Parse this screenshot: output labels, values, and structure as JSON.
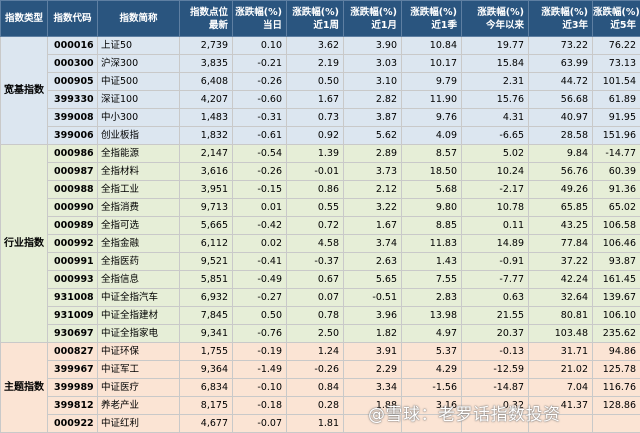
{
  "headers": [
    "指数类型",
    "指数代码",
    "指数简称",
    "指数点位\n最新",
    "涨跌幅(%)\n当日",
    "涨跌幅(%)\n近1周",
    "涨跌幅(%)\n近1月",
    "涨跌幅(%)\n近1季",
    "涨跌幅(%)\n今年以来",
    "涨跌幅(%)\n近3年",
    "涨跌幅(%)\n近5年"
  ],
  "groups": [
    {
      "name": "宽基指数",
      "color": "blue",
      "rows": [
        [
          "000016",
          "上证50",
          "2,739",
          "0.10",
          "3.62",
          "3.90",
          "10.84",
          "19.77",
          "73.22",
          "76.22"
        ],
        [
          "000300",
          "沪深300",
          "3,835",
          "-0.21",
          "2.19",
          "3.03",
          "10.17",
          "15.84",
          "63.99",
          "73.13"
        ],
        [
          "000905",
          "中证500",
          "6,408",
          "-0.26",
          "0.50",
          "3.10",
          "9.79",
          "2.31",
          "44.72",
          "101.54"
        ],
        [
          "399330",
          "深证100",
          "4,207",
          "-0.60",
          "1.67",
          "2.82",
          "11.90",
          "15.76",
          "56.68",
          "61.89"
        ],
        [
          "399008",
          "中小300",
          "1,483",
          "-0.31",
          "0.73",
          "3.87",
          "9.76",
          "4.31",
          "40.97",
          "91.95"
        ],
        [
          "399006",
          "创业板指",
          "1,832",
          "-0.61",
          "0.92",
          "5.62",
          "4.09",
          "-6.65",
          "28.58",
          "151.96"
        ]
      ]
    },
    {
      "name": "行业指数",
      "color": "green",
      "rows": [
        [
          "000986",
          "全指能源",
          "2,147",
          "-0.54",
          "1.39",
          "2.89",
          "8.57",
          "5.02",
          "9.84",
          "-14.77"
        ],
        [
          "000987",
          "全指材料",
          "3,616",
          "-0.26",
          "-0.01",
          "3.73",
          "18.50",
          "10.24",
          "56.76",
          "60.39"
        ],
        [
          "000988",
          "全指工业",
          "3,951",
          "-0.15",
          "0.86",
          "2.12",
          "5.68",
          "-2.17",
          "49.26",
          "91.36"
        ],
        [
          "000990",
          "全指消费",
          "9,713",
          "0.01",
          "0.55",
          "3.22",
          "9.80",
          "10.78",
          "65.85",
          "65.02"
        ],
        [
          "000989",
          "全指可选",
          "5,665",
          "-0.42",
          "0.72",
          "1.67",
          "8.85",
          "0.11",
          "43.25",
          "106.58"
        ],
        [
          "000992",
          "全指金融",
          "6,112",
          "0.02",
          "4.58",
          "3.74",
          "11.83",
          "14.89",
          "77.84",
          "106.46"
        ],
        [
          "000991",
          "全指医药",
          "9,521",
          "-0.41",
          "-0.37",
          "2.63",
          "1.43",
          "-0.91",
          "37.22",
          "93.87"
        ],
        [
          "000993",
          "全指信息",
          "5,851",
          "-0.49",
          "0.67",
          "5.65",
          "7.55",
          "-7.77",
          "42.24",
          "161.45"
        ],
        [
          "931008",
          "中证全指汽车",
          "6,932",
          "-0.27",
          "0.07",
          "-0.51",
          "2.83",
          "0.63",
          "32.64",
          "139.67"
        ],
        [
          "931009",
          "中证全指建材",
          "7,845",
          "0.50",
          "0.78",
          "3.96",
          "13.98",
          "21.55",
          "80.81",
          "106.10"
        ],
        [
          "930697",
          "中证全指家电",
          "9,341",
          "-0.76",
          "2.50",
          "1.82",
          "4.97",
          "20.37",
          "103.48",
          "235.62"
        ]
      ]
    },
    {
      "name": "主题指数",
      "color": "orange",
      "rows": [
        [
          "000827",
          "中证环保",
          "1,755",
          "-0.19",
          "1.24",
          "3.91",
          "5.37",
          "-0.13",
          "31.71",
          "94.86"
        ],
        [
          "399967",
          "中证军工",
          "9,364",
          "-1.49",
          "-0.26",
          "2.29",
          "4.29",
          "-12.59",
          "21.02",
          "125.78"
        ],
        [
          "399989",
          "中证医疗",
          "6,834",
          "-0.10",
          "0.84",
          "3.34",
          "-1.56",
          "-14.87",
          "7.04",
          "116.76"
        ],
        [
          "399812",
          "养老产业",
          "8,175",
          "-0.18",
          "0.28",
          "1.88",
          "3.16",
          "0.32",
          "41.37",
          "128.86"
        ],
        [
          "000922",
          "中证红利",
          "4,677",
          "-0.07",
          "1.81",
          "",
          "",
          "",
          "",
          ""
        ]
      ]
    }
  ],
  "watermark": "@雪球：老罗话指数投资"
}
